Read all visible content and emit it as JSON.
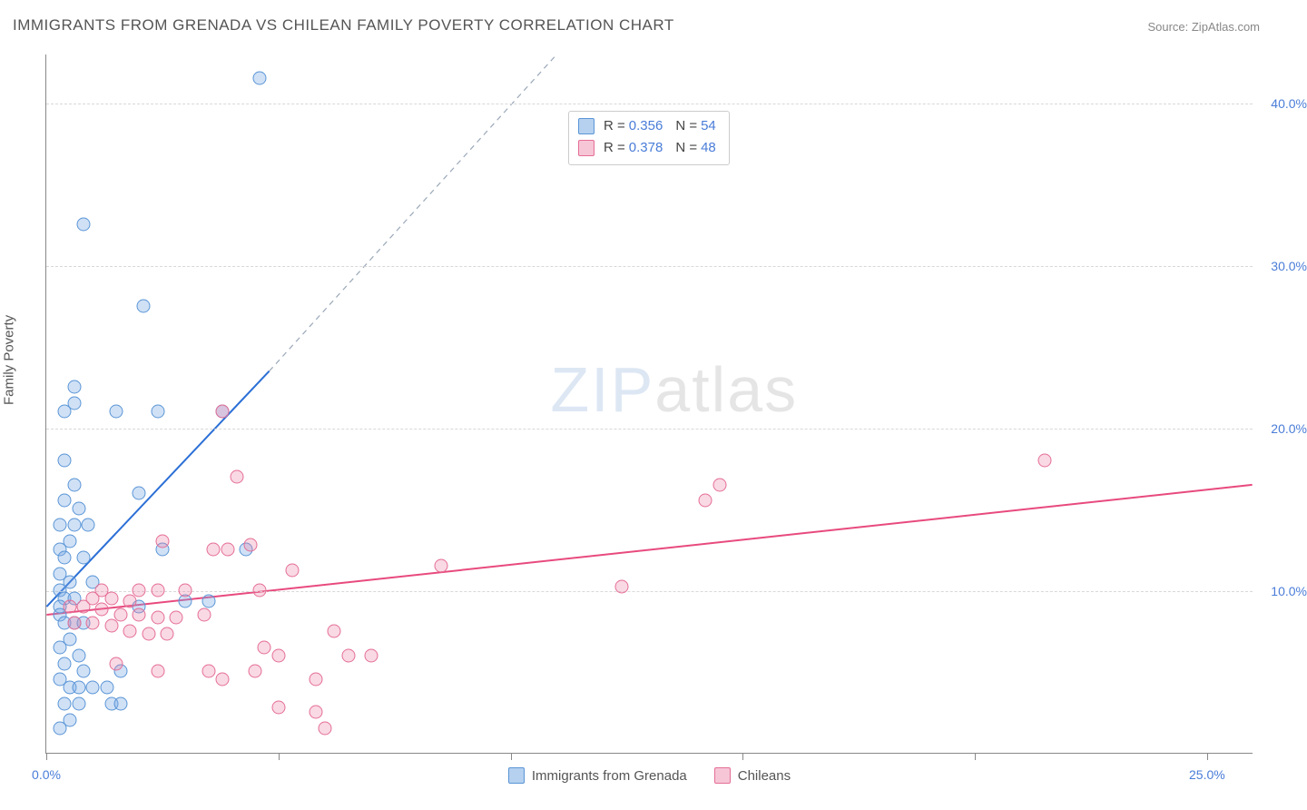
{
  "title": "IMMIGRANTS FROM GRENADA VS CHILEAN FAMILY POVERTY CORRELATION CHART",
  "source_label": "Source: ZipAtlas.com",
  "y_axis_title": "Family Poverty",
  "watermark": {
    "bold": "ZIP",
    "thin": "atlas"
  },
  "chart": {
    "type": "scatter",
    "background_color": "#ffffff",
    "grid_color": "#d8d8d8",
    "axis_color": "#888888",
    "tick_label_color": "#4a7dd8",
    "axis_title_color": "#555555",
    "title_fontsize": 17,
    "label_fontsize": 15,
    "tick_fontsize": 14,
    "marker_radius": 7.5,
    "marker_stroke_width": 1.5,
    "trend_line_width": 2,
    "xlim": [
      0,
      26
    ],
    "ylim": [
      0,
      43
    ],
    "y_grid": [
      10,
      20,
      30,
      40
    ],
    "y_grid_labels": [
      "10.0%",
      "20.0%",
      "30.0%",
      "40.0%"
    ],
    "x_ticks": [
      0,
      5,
      10,
      15,
      20,
      25
    ],
    "x_min_label": "0.0%",
    "x_max_label": "25.0%",
    "series": [
      {
        "label": "Immigrants from Grenada",
        "fill": "rgba(120,170,230,0.35)",
        "stroke": "#5a95d6",
        "swatch_fill": "#b5d1ef",
        "swatch_stroke": "#5a95d6",
        "trend_color": "#2b6fd6",
        "R": "0.356",
        "N": "54",
        "trend": {
          "x1": 0,
          "y1": 9.0,
          "x2_solid": 4.8,
          "y2_solid": 23.5,
          "x2_dash": 11.0,
          "y2_dash": 43.0
        },
        "points": [
          [
            4.6,
            41.5
          ],
          [
            0.8,
            32.5
          ],
          [
            2.1,
            27.5
          ],
          [
            0.6,
            22.5
          ],
          [
            0.6,
            21.5
          ],
          [
            0.4,
            21.0
          ],
          [
            1.5,
            21.0
          ],
          [
            2.4,
            21.0
          ],
          [
            3.8,
            21.0
          ],
          [
            0.4,
            18.0
          ],
          [
            0.6,
            16.5
          ],
          [
            2.0,
            16.0
          ],
          [
            0.4,
            15.5
          ],
          [
            0.7,
            15.0
          ],
          [
            0.3,
            14.0
          ],
          [
            0.6,
            14.0
          ],
          [
            0.9,
            14.0
          ],
          [
            0.5,
            13.0
          ],
          [
            0.3,
            12.5
          ],
          [
            2.5,
            12.5
          ],
          [
            4.3,
            12.5
          ],
          [
            0.4,
            12.0
          ],
          [
            0.8,
            12.0
          ],
          [
            0.3,
            11.0
          ],
          [
            0.5,
            10.5
          ],
          [
            1.0,
            10.5
          ],
          [
            0.3,
            10.0
          ],
          [
            0.4,
            9.5
          ],
          [
            0.6,
            9.5
          ],
          [
            0.3,
            9.0
          ],
          [
            2.0,
            9.0
          ],
          [
            3.0,
            9.3
          ],
          [
            3.5,
            9.3
          ],
          [
            0.3,
            8.5
          ],
          [
            0.4,
            8.0
          ],
          [
            0.6,
            8.0
          ],
          [
            0.8,
            8.0
          ],
          [
            0.5,
            7.0
          ],
          [
            0.3,
            6.5
          ],
          [
            0.7,
            6.0
          ],
          [
            0.4,
            5.5
          ],
          [
            0.8,
            5.0
          ],
          [
            1.6,
            5.0
          ],
          [
            0.3,
            4.5
          ],
          [
            0.5,
            4.0
          ],
          [
            0.7,
            4.0
          ],
          [
            1.0,
            4.0
          ],
          [
            1.3,
            4.0
          ],
          [
            0.4,
            3.0
          ],
          [
            0.7,
            3.0
          ],
          [
            1.4,
            3.0
          ],
          [
            1.6,
            3.0
          ],
          [
            0.5,
            2.0
          ],
          [
            0.3,
            1.5
          ]
        ]
      },
      {
        "label": "Chileans",
        "fill": "rgba(236,130,165,0.30)",
        "stroke": "#e56e95",
        "swatch_fill": "#f6c6d7",
        "swatch_stroke": "#e56e95",
        "trend_color": "#e84a7e",
        "R": "0.378",
        "N": "48",
        "trend": {
          "x1": 0,
          "y1": 8.5,
          "x2_solid": 26,
          "y2_solid": 16.5
        },
        "points": [
          [
            3.8,
            21.0
          ],
          [
            21.5,
            18.0
          ],
          [
            4.1,
            17.0
          ],
          [
            14.5,
            16.5
          ],
          [
            14.2,
            15.5
          ],
          [
            2.5,
            13.0
          ],
          [
            3.6,
            12.5
          ],
          [
            3.9,
            12.5
          ],
          [
            4.4,
            12.8
          ],
          [
            8.5,
            11.5
          ],
          [
            12.4,
            10.2
          ],
          [
            5.3,
            11.2
          ],
          [
            1.2,
            10.0
          ],
          [
            2.0,
            10.0
          ],
          [
            2.4,
            10.0
          ],
          [
            3.0,
            10.0
          ],
          [
            4.6,
            10.0
          ],
          [
            1.0,
            9.5
          ],
          [
            1.4,
            9.5
          ],
          [
            1.8,
            9.3
          ],
          [
            0.5,
            9.0
          ],
          [
            0.8,
            9.0
          ],
          [
            1.2,
            8.8
          ],
          [
            1.6,
            8.5
          ],
          [
            2.0,
            8.5
          ],
          [
            2.4,
            8.3
          ],
          [
            2.8,
            8.3
          ],
          [
            3.4,
            8.5
          ],
          [
            0.6,
            8.0
          ],
          [
            1.0,
            8.0
          ],
          [
            1.4,
            7.8
          ],
          [
            1.8,
            7.5
          ],
          [
            2.2,
            7.3
          ],
          [
            2.6,
            7.3
          ],
          [
            6.2,
            7.5
          ],
          [
            4.7,
            6.5
          ],
          [
            5.0,
            6.0
          ],
          [
            6.5,
            6.0
          ],
          [
            7.0,
            6.0
          ],
          [
            2.4,
            5.0
          ],
          [
            3.5,
            5.0
          ],
          [
            4.5,
            5.0
          ],
          [
            3.8,
            4.5
          ],
          [
            5.8,
            4.5
          ],
          [
            5.0,
            2.8
          ],
          [
            5.8,
            2.5
          ],
          [
            6.0,
            1.5
          ],
          [
            1.5,
            5.5
          ]
        ]
      }
    ]
  }
}
